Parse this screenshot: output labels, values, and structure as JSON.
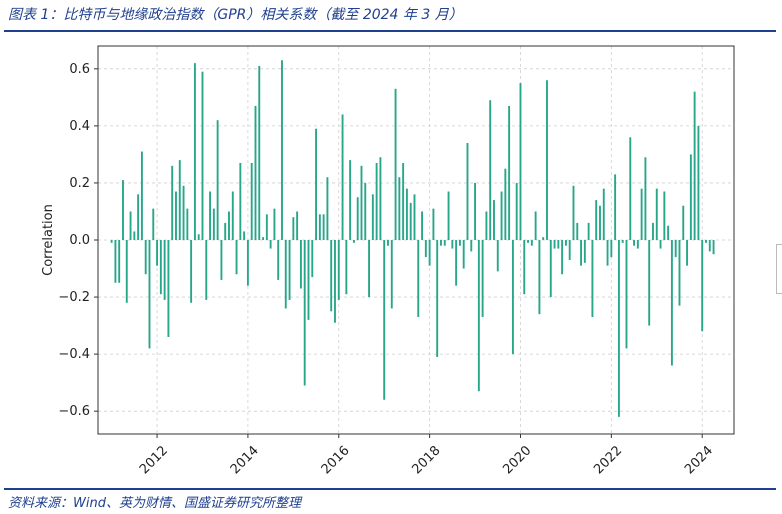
{
  "header": {
    "title": "图表 1：比特币与地缘政治指数（GPR）相关系数（截至 2024 年 3 月）"
  },
  "footer": {
    "source": "资料来源：Wind、英为财情、国盛证券研究所整理"
  },
  "colors": {
    "bar": "#27a689",
    "accent": "#1f3f8f"
  },
  "chart_data": {
    "type": "bar",
    "title": "",
    "xlabel": "",
    "ylabel": "Correlation",
    "ylim": [
      -0.68,
      0.68
    ],
    "yticks": [
      -0.6,
      -0.4,
      -0.2,
      0.0,
      0.2,
      0.4,
      0.6
    ],
    "ytick_labels": [
      "−0.6",
      "−0.4",
      "−0.2",
      "0.0",
      "0.2",
      "0.4",
      "0.6"
    ],
    "xlim": [
      2010.7,
      2024.7
    ],
    "xticks": [
      2012,
      2014,
      2016,
      2018,
      2020,
      2022,
      2024
    ],
    "xtick_labels": [
      "2012",
      "2014",
      "2016",
      "2018",
      "2020",
      "2022",
      "2024"
    ],
    "grid": true,
    "x_start": "2011-01",
    "frequency": "monthly",
    "values": [
      -0.01,
      -0.15,
      -0.15,
      0.21,
      -0.22,
      0.1,
      0.03,
      0.16,
      0.31,
      -0.12,
      -0.38,
      0.11,
      -0.09,
      -0.19,
      -0.21,
      -0.34,
      0.26,
      0.17,
      0.28,
      0.19,
      0.11,
      -0.22,
      0.62,
      0.02,
      0.59,
      -0.21,
      0.17,
      0.11,
      0.42,
      -0.14,
      0.06,
      0.1,
      0.17,
      -0.12,
      0.27,
      0.03,
      -0.16,
      0.27,
      0.47,
      0.61,
      0.01,
      0.09,
      -0.03,
      0.11,
      -0.14,
      0.63,
      -0.24,
      -0.21,
      0.08,
      0.1,
      -0.17,
      -0.51,
      -0.28,
      -0.13,
      0.39,
      0.09,
      0.09,
      0.22,
      -0.25,
      -0.29,
      -0.21,
      0.44,
      -0.19,
      0.28,
      -0.01,
      0.15,
      0.26,
      0.2,
      -0.2,
      0.16,
      0.27,
      0.29,
      -0.56,
      -0.02,
      -0.24,
      0.53,
      0.22,
      0.27,
      0.18,
      0.13,
      0.16,
      -0.27,
      0.1,
      -0.06,
      -0.09,
      0.11,
      -0.41,
      -0.02,
      -0.02,
      0.17,
      -0.03,
      -0.16,
      -0.02,
      -0.1,
      0.34,
      -0.04,
      0.2,
      -0.53,
      -0.27,
      0.1,
      0.49,
      0.14,
      -0.11,
      0.17,
      0.25,
      0.47,
      -0.4,
      0.2,
      0.55,
      -0.19,
      -0.01,
      -0.02,
      0.1,
      -0.26,
      0.01,
      0.56,
      -0.2,
      -0.03,
      -0.03,
      -0.12,
      -0.02,
      -0.07,
      0.19,
      0.06,
      -0.09,
      -0.08,
      0.06,
      -0.27,
      0.14,
      0.12,
      0.18,
      -0.09,
      -0.06,
      0.23,
      -0.62,
      -0.01,
      -0.38,
      0.36,
      -0.02,
      -0.03,
      0.18,
      0.29,
      -0.3,
      0.06,
      0.18,
      -0.03,
      0.17,
      0.05,
      -0.44,
      -0.06,
      -0.23,
      0.12,
      -0.09,
      0.3,
      0.52,
      0.4,
      -0.32,
      -0.01,
      -0.04,
      -0.05
    ]
  }
}
